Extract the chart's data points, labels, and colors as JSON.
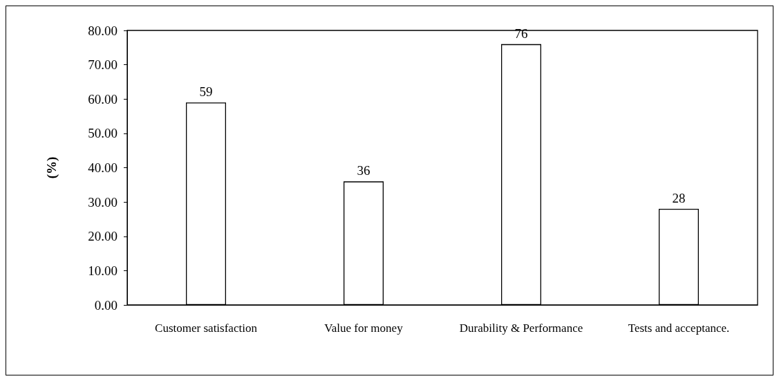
{
  "chart_data": {
    "type": "bar",
    "ylabel": "(%)",
    "categories": [
      "Customer satisfaction",
      "Value for money",
      "Durability & Performance",
      "Tests and acceptance."
    ],
    "values": [
      59,
      36,
      76,
      28
    ],
    "color": "#ffffff",
    "data_labels": true,
    "grid": false,
    "ylim": [
      0,
      80
    ],
    "yticks": [
      {
        "value": 0,
        "label": "0.00"
      },
      {
        "value": 10,
        "label": "10.00"
      },
      {
        "value": 20,
        "label": "20.00"
      },
      {
        "value": 30,
        "label": "30.00"
      },
      {
        "value": 40,
        "label": "40.00"
      },
      {
        "value": 50,
        "label": "50.00"
      },
      {
        "value": 60,
        "label": "60.00"
      },
      {
        "value": 70,
        "label": "70.00"
      },
      {
        "value": 80,
        "label": "80.00"
      }
    ]
  }
}
